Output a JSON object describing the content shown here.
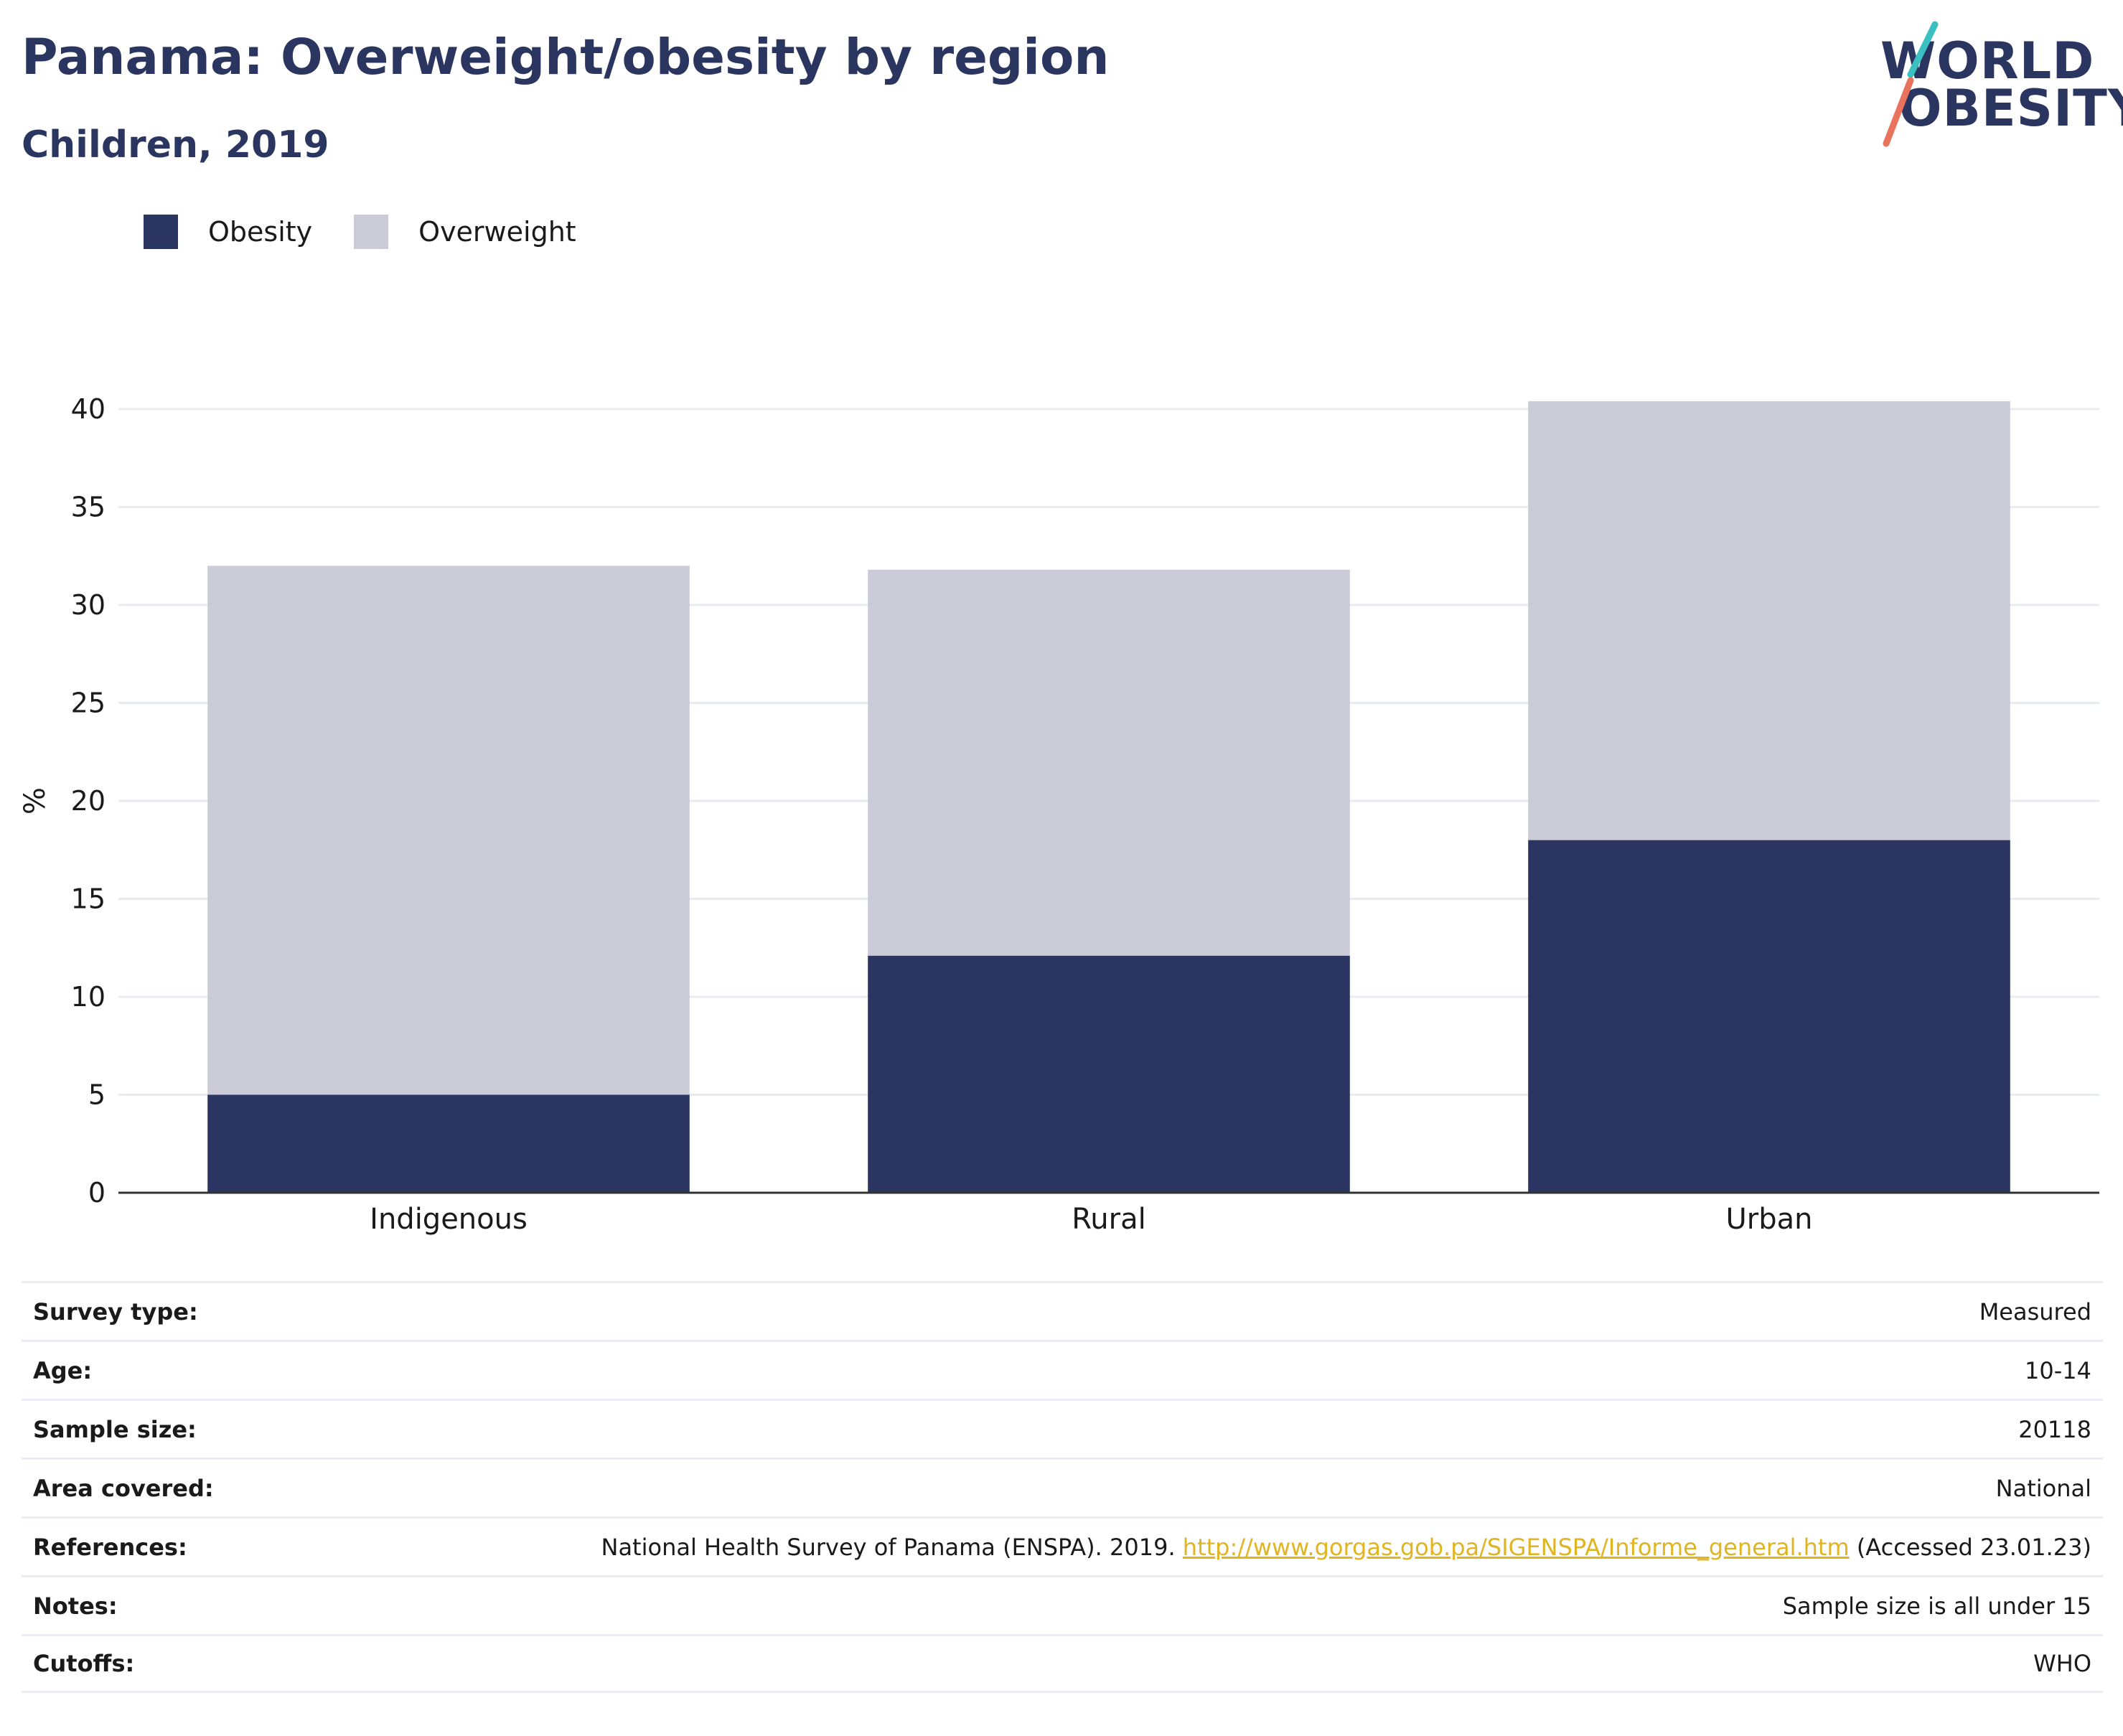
{
  "header": {
    "title": "Panama: Overweight/obesity by region",
    "subtitle": "Children, 2019"
  },
  "logo": {
    "line1": "WORLD",
    "line2": "OBESITY",
    "accent_teal": "#3bbfc1",
    "accent_coral": "#e9735c"
  },
  "colors": {
    "obesity": "#2a3562",
    "overweight": "#cacbd6",
    "grid": "#e8ebf0",
    "axis": "#333333",
    "link": "#e1b422"
  },
  "chart_data": {
    "type": "bar",
    "stacked": true,
    "categories": [
      "Indigenous",
      "Rural",
      "Urban"
    ],
    "series": [
      {
        "name": "Obesity",
        "values": [
          5.0,
          12.1,
          18.0
        ]
      },
      {
        "name": "Overweight",
        "values": [
          27.0,
          19.7,
          22.4
        ]
      }
    ],
    "ylabel": "%",
    "xlabel": "",
    "ylim": [
      0,
      40
    ],
    "yticks": [
      0,
      5,
      10,
      15,
      20,
      25,
      30,
      35,
      40
    ],
    "grid": true,
    "legend": "top-left"
  },
  "info": {
    "rows": [
      {
        "label": "Survey type:",
        "value": "Measured"
      },
      {
        "label": "Age:",
        "value": "10-14"
      },
      {
        "label": "Sample size:",
        "value": "20118"
      },
      {
        "label": "Area covered:",
        "value": "National"
      },
      {
        "label": "References:",
        "value": "National Health Survey of Panama (ENSPA). 2019.",
        "link": "http://www.gorgas.gob.pa/SIGENSPA/Informe_general.htm",
        "suffix": "(Accessed 23.01.23)"
      },
      {
        "label": "Notes:",
        "value": "Sample size is all under 15"
      },
      {
        "label": "Cutoffs:",
        "value": "WHO"
      }
    ]
  }
}
